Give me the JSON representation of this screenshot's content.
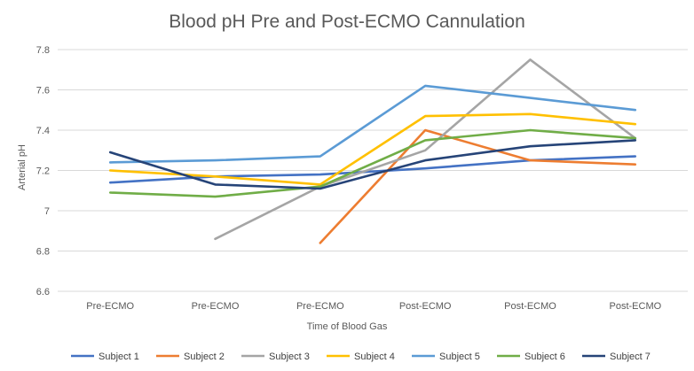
{
  "chart_data": {
    "type": "line",
    "title": "Blood pH Pre and Post-ECMO Cannulation",
    "xlabel": "Time of Blood Gas",
    "ylabel": "Arterial pH",
    "categories": [
      "Pre-ECMO",
      "Pre-ECMO",
      "Pre-ECMO",
      "Post-ECMO",
      "Post-ECMO",
      "Post-ECMO"
    ],
    "y_ticks": [
      "6.6",
      "6.8",
      "7",
      "7.2",
      "7.4",
      "7.6",
      "7.8"
    ],
    "ylim": [
      6.6,
      7.8
    ],
    "grid": true,
    "legend_position": "bottom",
    "series": [
      {
        "name": "Subject 1",
        "color": "#4472c4",
        "values": [
          7.14,
          7.17,
          7.18,
          7.21,
          7.25,
          7.27
        ]
      },
      {
        "name": "Subject 2",
        "color": "#ed7d31",
        "values": [
          null,
          null,
          6.84,
          7.4,
          7.25,
          7.23
        ]
      },
      {
        "name": "Subject 3",
        "color": "#a5a5a5",
        "values": [
          null,
          6.86,
          7.12,
          7.3,
          7.75,
          7.36
        ]
      },
      {
        "name": "Subject 4",
        "color": "#ffc000",
        "values": [
          7.2,
          7.17,
          7.13,
          7.47,
          7.48,
          7.43
        ]
      },
      {
        "name": "Subject 5",
        "color": "#5b9bd5",
        "values": [
          7.24,
          7.25,
          7.27,
          7.62,
          7.56,
          7.5
        ]
      },
      {
        "name": "Subject 6",
        "color": "#70ad47",
        "values": [
          7.09,
          7.07,
          7.12,
          7.35,
          7.4,
          7.36
        ]
      },
      {
        "name": "Subject 7",
        "color": "#264478",
        "values": [
          7.29,
          7.13,
          7.11,
          7.25,
          7.32,
          7.35
        ]
      }
    ]
  }
}
